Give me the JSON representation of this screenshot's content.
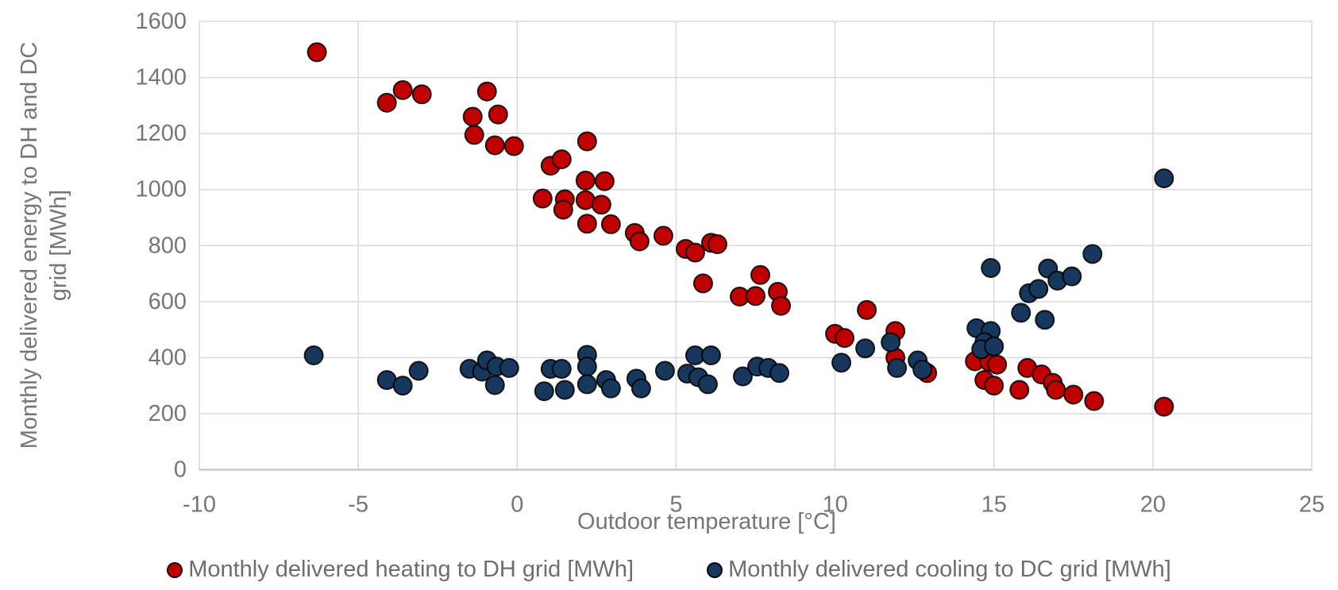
{
  "chart_data": {
    "type": "scatter",
    "title": "",
    "xlabel": "Outdoor temperature [°C]",
    "ylabel_lines": [
      "Monthly delivered energy to DH and DC",
      "grid [MWh]"
    ],
    "xlim": [
      -10,
      25
    ],
    "ylim": [
      0,
      1600
    ],
    "x_ticks": [
      -10,
      -5,
      0,
      5,
      10,
      15,
      20,
      25
    ],
    "y_ticks": [
      0,
      200,
      400,
      600,
      800,
      1000,
      1200,
      1400,
      1600
    ],
    "grid": true,
    "legend_position": "bottom",
    "grid_color": "#d9d9d9",
    "axis_line_color": "#bfbfbf",
    "text_color": "#767676",
    "marker_outline": "#000000",
    "series": [
      {
        "name": "Monthly delivered heating to DH grid [MWh]",
        "slug": "heating",
        "color": "#c00000",
        "points": [
          [
            -6.3,
            1490
          ],
          [
            -4.1,
            1310
          ],
          [
            -3.6,
            1355
          ],
          [
            -3.0,
            1340
          ],
          [
            -1.4,
            1260
          ],
          [
            -0.95,
            1350
          ],
          [
            -0.6,
            1268
          ],
          [
            -1.35,
            1195
          ],
          [
            -0.7,
            1158
          ],
          [
            -0.1,
            1155
          ],
          [
            1.05,
            1085
          ],
          [
            1.4,
            1108
          ],
          [
            2.2,
            1172
          ],
          [
            2.15,
            1032
          ],
          [
            2.75,
            1030
          ],
          [
            0.8,
            968
          ],
          [
            1.5,
            965
          ],
          [
            1.45,
            928
          ],
          [
            2.15,
            962
          ],
          [
            2.65,
            946
          ],
          [
            2.2,
            878
          ],
          [
            2.95,
            876
          ],
          [
            3.7,
            845
          ],
          [
            3.85,
            815
          ],
          [
            4.6,
            835
          ],
          [
            5.3,
            788
          ],
          [
            5.6,
            775
          ],
          [
            6.1,
            810
          ],
          [
            6.3,
            805
          ],
          [
            5.85,
            665
          ],
          [
            7.0,
            618
          ],
          [
            7.5,
            620
          ],
          [
            7.65,
            695
          ],
          [
            8.2,
            635
          ],
          [
            8.3,
            585
          ],
          [
            10.0,
            485
          ],
          [
            10.3,
            470
          ],
          [
            11.0,
            570
          ],
          [
            11.9,
            495
          ],
          [
            11.9,
            400
          ],
          [
            12.9,
            345
          ],
          [
            14.4,
            387
          ],
          [
            14.85,
            385
          ],
          [
            15.1,
            375
          ],
          [
            14.7,
            320
          ],
          [
            15.0,
            300
          ],
          [
            15.8,
            285
          ],
          [
            16.05,
            363
          ],
          [
            16.5,
            340
          ],
          [
            16.85,
            310
          ],
          [
            16.95,
            285
          ],
          [
            17.5,
            268
          ],
          [
            18.15,
            245
          ],
          [
            20.35,
            225
          ]
        ]
      },
      {
        "name": "Monthly delivered cooling to DC grid [MWh]",
        "slug": "cooling",
        "color": "#17375d",
        "points": [
          [
            -6.4,
            408
          ],
          [
            -4.1,
            320
          ],
          [
            -3.6,
            300
          ],
          [
            -3.1,
            353
          ],
          [
            -1.5,
            360
          ],
          [
            -1.1,
            350
          ],
          [
            -0.95,
            390
          ],
          [
            -0.7,
            302
          ],
          [
            -0.65,
            368
          ],
          [
            -0.25,
            363
          ],
          [
            0.85,
            280
          ],
          [
            1.05,
            360
          ],
          [
            1.4,
            360
          ],
          [
            1.5,
            285
          ],
          [
            2.2,
            410
          ],
          [
            2.2,
            368
          ],
          [
            2.2,
            305
          ],
          [
            2.8,
            320
          ],
          [
            2.95,
            290
          ],
          [
            3.75,
            325
          ],
          [
            3.9,
            290
          ],
          [
            4.65,
            353
          ],
          [
            5.35,
            343
          ],
          [
            5.7,
            330
          ],
          [
            5.6,
            408
          ],
          [
            6.1,
            408
          ],
          [
            6.0,
            305
          ],
          [
            7.1,
            333
          ],
          [
            7.55,
            368
          ],
          [
            7.9,
            363
          ],
          [
            8.25,
            345
          ],
          [
            10.2,
            382
          ],
          [
            10.95,
            433
          ],
          [
            11.75,
            455
          ],
          [
            11.95,
            363
          ],
          [
            12.6,
            390
          ],
          [
            12.75,
            357
          ],
          [
            14.45,
            505
          ],
          [
            14.9,
            495
          ],
          [
            14.7,
            455
          ],
          [
            14.6,
            430
          ],
          [
            15.0,
            440
          ],
          [
            14.9,
            720
          ],
          [
            15.85,
            560
          ],
          [
            16.1,
            630
          ],
          [
            16.4,
            645
          ],
          [
            16.6,
            535
          ],
          [
            16.7,
            718
          ],
          [
            17.0,
            675
          ],
          [
            17.45,
            690
          ],
          [
            18.1,
            770
          ],
          [
            20.35,
            1040
          ]
        ]
      }
    ]
  }
}
